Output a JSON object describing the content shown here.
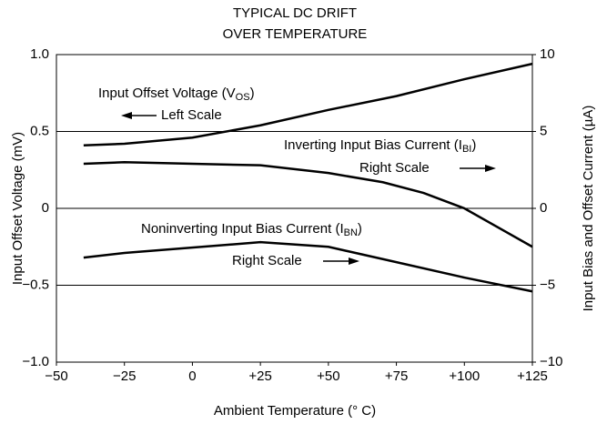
{
  "chart_data": {
    "type": "line",
    "title": [
      "TYPICAL DC DRIFT",
      "OVER TEMPERATURE"
    ],
    "xlabel": "Ambient Temperature (° C)",
    "ylabel": "Input Offset Voltage (mV)",
    "y2label": "Input Bias and Offset Current (µA)",
    "xlim": [
      -50,
      125
    ],
    "xticks": [
      {
        "value": -50,
        "label": "−50"
      },
      {
        "value": -25,
        "label": "−25"
      },
      0,
      {
        "value": 25,
        "label": "+25"
      },
      {
        "value": 50,
        "label": "+50"
      },
      {
        "value": 75,
        "label": "+75"
      },
      {
        "value": 100,
        "label": "+100"
      },
      {
        "value": 125,
        "label": "+125"
      }
    ],
    "ylim": [
      -1,
      1
    ],
    "yticks": [
      {
        "value": -1,
        "label": "−1.0"
      },
      {
        "value": -0.5,
        "label": "−0.5"
      },
      0,
      0.5,
      {
        "value": 1,
        "label": "1.0"
      }
    ],
    "y2lim": [
      -10,
      10
    ],
    "y2ticks": [
      {
        "value": -10,
        "label": "−10"
      },
      {
        "value": -5,
        "label": "−5"
      },
      0,
      5,
      10
    ],
    "grid": true,
    "series": [
      {
        "name": "Input Offset Voltage",
        "color": "#000000",
        "x": [
          -40,
          -25,
          0,
          25,
          50,
          75,
          100,
          125
        ],
        "values": [
          0.41,
          0.42,
          0.46,
          0.54,
          0.64,
          0.73,
          0.84,
          0.94
        ]
      },
      {
        "name": "Inverting Input Bias Current",
        "color": "#000000",
        "axis": "y2",
        "x": [
          -40,
          -25,
          0,
          25,
          50,
          70,
          85,
          100,
          125
        ],
        "values": [
          2.9,
          3.0,
          2.9,
          2.8,
          2.3,
          1.7,
          1.0,
          0,
          -2.5
        ]
      },
      {
        "name": "Noninverting Input Bias Current",
        "color": "#000000",
        "axis": "y2",
        "x": [
          -40,
          -25,
          25,
          50,
          70,
          100,
          125
        ],
        "values": [
          -3.2,
          -2.9,
          -2.2,
          -2.5,
          -3.3,
          -4.5,
          -5.4
        ]
      }
    ],
    "annotations": [
      {
        "text": "Input Offset Voltage (V",
        "sub": "OS",
        "after": ")"
      },
      {
        "text": "Left Scale"
      },
      {
        "text": "Inverting Input Bias Current (I",
        "sub": "BI",
        "after": ")"
      },
      {
        "text": "Right Scale"
      },
      {
        "text": "Noninverting Input Bias Current (I",
        "sub": "BN",
        "after": ")"
      },
      {
        "text": "Right Scale"
      }
    ]
  }
}
